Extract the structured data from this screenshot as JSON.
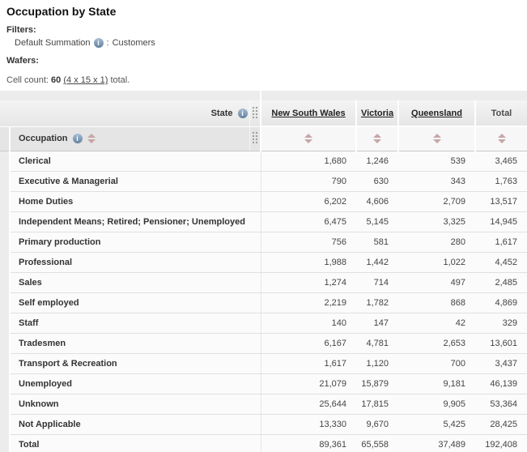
{
  "page": {
    "title": "Occupation by State"
  },
  "filters": {
    "heading": "Filters:",
    "item": {
      "name": "Default Summation",
      "separator": ":",
      "value": "Customers"
    }
  },
  "wafers": {
    "heading": "Wafers:"
  },
  "cell_count": {
    "prefix": "Cell count:",
    "value": "60",
    "link": "(4 x 15 x 1)",
    "suffix": "total."
  },
  "icons": {
    "info": "i"
  },
  "colors": {
    "header_bg": "#ececec",
    "subheader_bg": "#f7f7f7",
    "row_bg": "#fbfbfb",
    "gutter_bg": "#ececec",
    "row_border": "#e0e0e0",
    "sort_arrow": "#c7a6a6",
    "info_icon_bg": "#61809f",
    "link_text": "#222222"
  },
  "table": {
    "col_axis": "State",
    "row_axis": "Occupation",
    "columns": [
      "New South Wales",
      "Victoria",
      "Queensland",
      "Total"
    ],
    "rows": [
      {
        "label": "Clerical",
        "values": [
          "1,680",
          "1,246",
          "539",
          "3,465"
        ]
      },
      {
        "label": "Executive & Managerial",
        "values": [
          "790",
          "630",
          "343",
          "1,763"
        ]
      },
      {
        "label": "Home Duties",
        "values": [
          "6,202",
          "4,606",
          "2,709",
          "13,517"
        ]
      },
      {
        "label": "Independent Means; Retired; Pensioner; Unemployed",
        "values": [
          "6,475",
          "5,145",
          "3,325",
          "14,945"
        ]
      },
      {
        "label": "Primary production",
        "values": [
          "756",
          "581",
          "280",
          "1,617"
        ]
      },
      {
        "label": "Professional",
        "values": [
          "1,988",
          "1,442",
          "1,022",
          "4,452"
        ]
      },
      {
        "label": "Sales",
        "values": [
          "1,274",
          "714",
          "497",
          "2,485"
        ]
      },
      {
        "label": "Self employed",
        "values": [
          "2,219",
          "1,782",
          "868",
          "4,869"
        ]
      },
      {
        "label": "Staff",
        "values": [
          "140",
          "147",
          "42",
          "329"
        ]
      },
      {
        "label": "Tradesmen",
        "values": [
          "6,167",
          "4,781",
          "2,653",
          "13,601"
        ]
      },
      {
        "label": "Transport & Recreation",
        "values": [
          "1,617",
          "1,120",
          "700",
          "3,437"
        ]
      },
      {
        "label": "Unemployed",
        "values": [
          "21,079",
          "15,879",
          "9,181",
          "46,139"
        ]
      },
      {
        "label": "Unknown",
        "values": [
          "25,644",
          "17,815",
          "9,905",
          "53,364"
        ]
      },
      {
        "label": "Not Applicable",
        "values": [
          "13,330",
          "9,670",
          "5,425",
          "28,425"
        ]
      },
      {
        "label": "Total",
        "values": [
          "89,361",
          "65,558",
          "37,489",
          "192,408"
        ]
      }
    ]
  }
}
